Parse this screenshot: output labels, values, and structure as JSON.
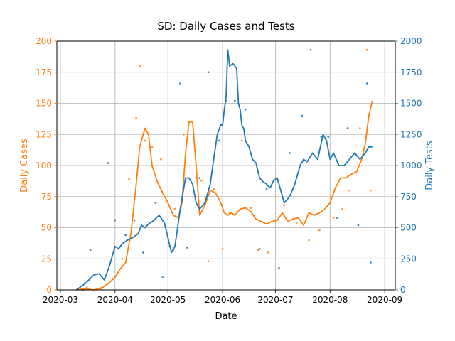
{
  "chart_data": {
    "type": "line",
    "title": "SD: Daily Cases and Tests",
    "xlabel": "Date",
    "ylabel_left": "Daily Cases",
    "ylabel_right": "Daily Tests",
    "xlim": [
      "2020-02-28",
      "2020-09-07"
    ],
    "ylim_left": [
      0,
      200
    ],
    "ylim_right": [
      0,
      2000
    ],
    "grid": true,
    "x_tick_labels": [
      "2020-03",
      "2020-04",
      "2020-05",
      "2020-06",
      "2020-07",
      "2020-08",
      "2020-09"
    ],
    "y_left_tick_labels": [
      "0",
      "25",
      "50",
      "75",
      "100",
      "125",
      "150",
      "175",
      "200"
    ],
    "y_right_tick_labels": [
      "0",
      "250",
      "500",
      "750",
      "1000",
      "1250",
      "1500",
      "1750",
      "2000"
    ],
    "colors": {
      "cases": "#ff7f0e",
      "tests": "#1f77b4"
    },
    "series": [
      {
        "axis": "left",
        "color": "#ff7f0e",
        "x": [
          "2020-03-10",
          "2020-03-15",
          "2020-03-20",
          "2020-03-25",
          "2020-03-28",
          "2020-04-01",
          "2020-04-04",
          "2020-04-07",
          "2020-04-10",
          "2020-04-13",
          "2020-04-15",
          "2020-04-17",
          "2020-04-18",
          "2020-04-20",
          "2020-04-22",
          "2020-04-25",
          "2020-04-28",
          "2020-05-01",
          "2020-05-04",
          "2020-05-07",
          "2020-05-09",
          "2020-05-11",
          "2020-05-13",
          "2020-05-15",
          "2020-05-17",
          "2020-05-19",
          "2020-05-22",
          "2020-05-25",
          "2020-05-28",
          "2020-05-31",
          "2020-06-02",
          "2020-06-04",
          "2020-06-06",
          "2020-06-08",
          "2020-06-11",
          "2020-06-14",
          "2020-06-17",
          "2020-06-20",
          "2020-06-23",
          "2020-06-26",
          "2020-06-29",
          "2020-07-02",
          "2020-07-05",
          "2020-07-08",
          "2020-07-11",
          "2020-07-14",
          "2020-07-17",
          "2020-07-20",
          "2020-07-23",
          "2020-07-26",
          "2020-07-29",
          "2020-08-01",
          "2020-08-04",
          "2020-08-07",
          "2020-08-10",
          "2020-08-13",
          "2020-08-16",
          "2020-08-19",
          "2020-08-21",
          "2020-08-23",
          "2020-08-25"
        ],
        "values": [
          0,
          1,
          0,
          2,
          5,
          10,
          17,
          22,
          45,
          85,
          115,
          125,
          130,
          125,
          100,
          87,
          78,
          70,
          60,
          58,
          70,
          110,
          135,
          135,
          100,
          60,
          68,
          80,
          78,
          70,
          62,
          60,
          62,
          60,
          65,
          66,
          63,
          57,
          55,
          53,
          55,
          56,
          62,
          55,
          57,
          58,
          52,
          62,
          60,
          62,
          65,
          70,
          82,
          90,
          90,
          93,
          95,
          105,
          118,
          140,
          152
        ]
      },
      {
        "axis": "right",
        "color": "#1f77b4",
        "x": [
          "2020-03-10",
          "2020-03-15",
          "2020-03-20",
          "2020-03-23",
          "2020-03-26",
          "2020-03-29",
          "2020-04-01",
          "2020-04-03",
          "2020-04-05",
          "2020-04-08",
          "2020-04-11",
          "2020-04-14",
          "2020-04-16",
          "2020-04-18",
          "2020-04-20",
          "2020-04-23",
          "2020-04-26",
          "2020-04-29",
          "2020-05-01",
          "2020-05-03",
          "2020-05-05",
          "2020-05-08",
          "2020-05-11",
          "2020-05-13",
          "2020-05-15",
          "2020-05-17",
          "2020-05-19",
          "2020-05-22",
          "2020-05-25",
          "2020-05-27",
          "2020-05-29",
          "2020-05-31",
          "2020-06-01",
          "2020-06-02",
          "2020-06-03",
          "2020-06-04",
          "2020-06-05",
          "2020-06-07",
          "2020-06-09",
          "2020-06-10",
          "2020-06-11",
          "2020-06-12",
          "2020-06-13",
          "2020-06-14",
          "2020-06-16",
          "2020-06-18",
          "2020-06-20",
          "2020-06-22",
          "2020-06-24",
          "2020-06-26",
          "2020-06-28",
          "2020-06-30",
          "2020-07-02",
          "2020-07-04",
          "2020-07-06",
          "2020-07-09",
          "2020-07-12",
          "2020-07-15",
          "2020-07-17",
          "2020-07-19",
          "2020-07-22",
          "2020-07-25",
          "2020-07-28",
          "2020-07-30",
          "2020-08-01",
          "2020-08-03",
          "2020-08-06",
          "2020-08-09",
          "2020-08-12",
          "2020-08-15",
          "2020-08-18",
          "2020-08-21",
          "2020-08-23",
          "2020-08-25"
        ],
        "values": [
          0,
          50,
          120,
          130,
          80,
          200,
          350,
          330,
          370,
          400,
          420,
          450,
          520,
          500,
          530,
          560,
          600,
          540,
          420,
          300,
          350,
          650,
          900,
          900,
          850,
          700,
          650,
          700,
          850,
          1050,
          1250,
          1330,
          1320,
          1450,
          1550,
          1930,
          1800,
          1820,
          1780,
          1500,
          1450,
          1320,
          1300,
          1200,
          1150,
          1050,
          1020,
          900,
          870,
          850,
          820,
          880,
          900,
          800,
          700,
          750,
          850,
          1000,
          1050,
          1030,
          1100,
          1050,
          1250,
          1200,
          1050,
          1100,
          1000,
          1000,
          1050,
          1100,
          1050,
          1100,
          1150,
          1150
        ]
      }
    ],
    "scatter": [
      {
        "axis": "left",
        "color": "#ff7f0e",
        "x": [
          "2020-03-16",
          "2020-03-24",
          "2020-04-05",
          "2020-04-09",
          "2020-04-13",
          "2020-04-15",
          "2020-04-18",
          "2020-04-22",
          "2020-04-27",
          "2020-05-02",
          "2020-05-05",
          "2020-05-10",
          "2020-05-17",
          "2020-05-20",
          "2020-05-24",
          "2020-05-27",
          "2020-06-01",
          "2020-06-05",
          "2020-06-12",
          "2020-06-17",
          "2020-06-21",
          "2020-06-27",
          "2020-07-06",
          "2020-07-13",
          "2020-07-20",
          "2020-07-26",
          "2020-08-03",
          "2020-08-08",
          "2020-08-12",
          "2020-08-18",
          "2020-08-22",
          "2020-08-24"
        ],
        "values": [
          2,
          1,
          25,
          89,
          138,
          180,
          120,
          115,
          105,
          35,
          65,
          125,
          90,
          88,
          23,
          81,
          33,
          62,
          120,
          66,
          32,
          30,
          68,
          54,
          40,
          48,
          58,
          65,
          80,
          130,
          193,
          80
        ]
      },
      {
        "axis": "right",
        "color": "#1f77b4",
        "x": [
          "2020-03-14",
          "2020-03-18",
          "2020-03-28",
          "2020-04-01",
          "2020-04-07",
          "2020-04-12",
          "2020-04-17",
          "2020-04-24",
          "2020-04-28",
          "2020-05-04",
          "2020-05-08",
          "2020-05-12",
          "2020-05-19",
          "2020-05-24",
          "2020-05-30",
          "2020-06-03",
          "2020-06-08",
          "2020-06-14",
          "2020-06-22",
          "2020-06-26",
          "2020-07-03",
          "2020-07-09",
          "2020-07-16",
          "2020-07-21",
          "2020-07-27",
          "2020-07-31",
          "2020-08-05",
          "2020-08-11",
          "2020-08-17",
          "2020-08-22",
          "2020-08-24"
        ],
        "values": [
          0,
          320,
          1020,
          560,
          440,
          560,
          300,
          700,
          100,
          320,
          1660,
          340,
          900,
          1750,
          1200,
          1520,
          1520,
          1450,
          330,
          810,
          175,
          1100,
          1400,
          1930,
          1230,
          1230,
          580,
          1300,
          520,
          1660,
          220
        ]
      }
    ]
  }
}
